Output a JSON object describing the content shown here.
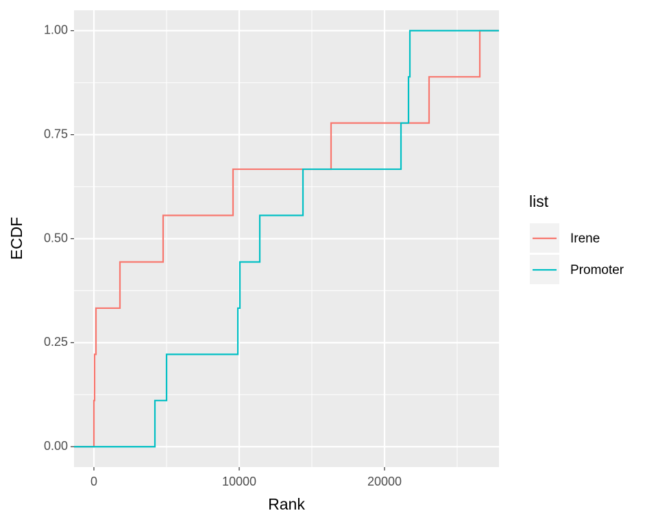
{
  "chart_data": {
    "type": "step",
    "x_label": "Rank",
    "y_label": "ECDF",
    "legend_title": "list",
    "legend_position": "right",
    "xlim": [
      -1368,
      27877
    ],
    "ylim": [
      -0.049,
      1.049
    ],
    "xticks": [
      0,
      10000,
      20000
    ],
    "yticks": [
      {
        "value": 0,
        "label": "0.00"
      },
      {
        "value": 0.25,
        "label": "0.25"
      },
      {
        "value": 0.5,
        "label": "0.50"
      },
      {
        "value": 0.75,
        "label": "0.75"
      },
      {
        "value": 1,
        "label": "1.00"
      }
    ],
    "grid": true,
    "series": [
      {
        "name": "Irene",
        "color": "#F8766D",
        "x": [
          0,
          47,
          142,
          1792,
          4764,
          9575,
          16321,
          23066,
          26557
        ],
        "values": [
          0.111,
          0.222,
          0.333,
          0.444,
          0.556,
          0.667,
          0.778,
          0.889,
          1
        ]
      },
      {
        "name": "Promoter",
        "color": "#00BFC4",
        "x": [
          4198,
          5000,
          9906,
          10047,
          11415,
          14387,
          21132,
          21651,
          21745
        ],
        "values": [
          0.111,
          0.222,
          0.333,
          0.444,
          0.556,
          0.667,
          0.778,
          0.889,
          1
        ]
      }
    ]
  }
}
